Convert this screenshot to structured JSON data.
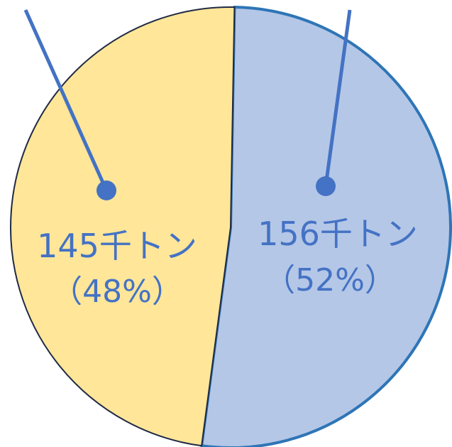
{
  "chart_data": {
    "type": "pie",
    "title": "",
    "slices": [
      {
        "value": 156,
        "percent": 52,
        "value_label": "156千トン",
        "percent_label": "（52%）",
        "fill": "#b4c7e7",
        "stroke": "#2e75b6"
      },
      {
        "value": 145,
        "percent": 48,
        "value_label": "145千トン",
        "percent_label": "（48%）",
        "fill": "#ffe699",
        "stroke": "#1f2a44"
      }
    ],
    "leader_color": "#4472c4",
    "label_color": "#4472c4"
  }
}
